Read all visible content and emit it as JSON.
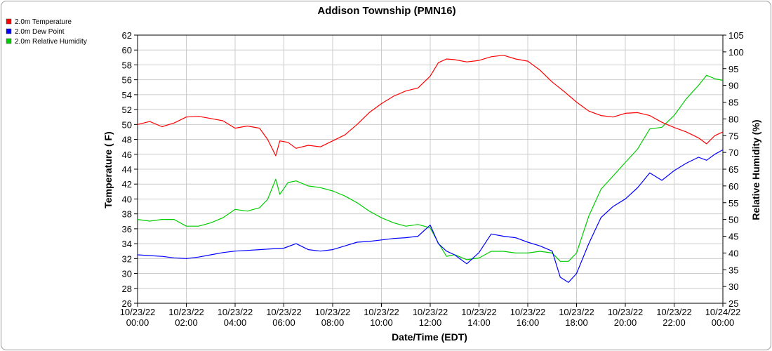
{
  "chart_data": {
    "type": "line",
    "title": "Addison Township (PMN16)",
    "xlabel": "Date/Time (EDT)",
    "ylabel_left": "Temperature ( F)",
    "ylabel_right": "Relative Humidity (%)",
    "ylim_left": [
      26,
      62
    ],
    "ylim_right": [
      25,
      105
    ],
    "xlim": [
      "10/23/22 00:00",
      "10/24/22 00:00"
    ],
    "grid": true,
    "legend_position": "top-left",
    "x_ticks": [
      {
        "date": "10/23/22",
        "time": "00:00"
      },
      {
        "date": "10/23/22",
        "time": "02:00"
      },
      {
        "date": "10/23/22",
        "time": "04:00"
      },
      {
        "date": "10/23/22",
        "time": "06:00"
      },
      {
        "date": "10/23/22",
        "time": "08:00"
      },
      {
        "date": "10/23/22",
        "time": "10:00"
      },
      {
        "date": "10/23/22",
        "time": "12:00"
      },
      {
        "date": "10/23/22",
        "time": "14:00"
      },
      {
        "date": "10/23/22",
        "time": "16:00"
      },
      {
        "date": "10/23/22",
        "time": "18:00"
      },
      {
        "date": "10/23/22",
        "time": "20:00"
      },
      {
        "date": "10/23/22",
        "time": "22:00"
      },
      {
        "date": "10/24/22",
        "time": "00:00"
      }
    ],
    "y_ticks_left": [
      26,
      28,
      30,
      32,
      34,
      36,
      38,
      40,
      42,
      44,
      46,
      48,
      50,
      52,
      54,
      56,
      58,
      60,
      62
    ],
    "y_ticks_right": [
      25,
      30,
      35,
      40,
      45,
      50,
      55,
      60,
      65,
      70,
      75,
      80,
      85,
      90,
      95,
      100,
      105
    ],
    "series": [
      {
        "name": "2.0m Temperature",
        "color": "#ff0000",
        "axis": "left",
        "points": [
          [
            "10/23/22 00:00",
            50.0
          ],
          [
            "10/23/22 00:30",
            50.4
          ],
          [
            "10/23/22 01:00",
            49.7
          ],
          [
            "10/23/22 01:30",
            50.2
          ],
          [
            "10/23/22 02:00",
            51.0
          ],
          [
            "10/23/22 02:30",
            51.1
          ],
          [
            "10/23/22 03:00",
            50.8
          ],
          [
            "10/23/22 03:30",
            50.5
          ],
          [
            "10/23/22 04:00",
            49.5
          ],
          [
            "10/23/22 04:30",
            49.8
          ],
          [
            "10/23/22 05:00",
            49.5
          ],
          [
            "10/23/22 05:20",
            48.0
          ],
          [
            "10/23/22 05:40",
            45.8
          ],
          [
            "10/23/22 05:50",
            47.8
          ],
          [
            "10/23/22 06:10",
            47.6
          ],
          [
            "10/23/22 06:30",
            46.8
          ],
          [
            "10/23/22 07:00",
            47.2
          ],
          [
            "10/23/22 07:30",
            47.0
          ],
          [
            "10/23/22 08:00",
            47.8
          ],
          [
            "10/23/22 08:30",
            48.6
          ],
          [
            "10/23/22 09:00",
            50.0
          ],
          [
            "10/23/22 09:30",
            51.6
          ],
          [
            "10/23/22 10:00",
            52.8
          ],
          [
            "10/23/22 10:30",
            53.8
          ],
          [
            "10/23/22 11:00",
            54.5
          ],
          [
            "10/23/22 11:30",
            54.9
          ],
          [
            "10/23/22 12:00",
            56.5
          ],
          [
            "10/23/22 12:20",
            58.3
          ],
          [
            "10/23/22 12:40",
            58.8
          ],
          [
            "10/23/22 13:00",
            58.7
          ],
          [
            "10/23/22 13:30",
            58.4
          ],
          [
            "10/23/22 14:00",
            58.6
          ],
          [
            "10/23/22 14:30",
            59.1
          ],
          [
            "10/23/22 15:00",
            59.3
          ],
          [
            "10/23/22 15:30",
            58.8
          ],
          [
            "10/23/22 16:00",
            58.5
          ],
          [
            "10/23/22 16:30",
            57.3
          ],
          [
            "10/23/22 17:00",
            55.7
          ],
          [
            "10/23/22 17:30",
            54.4
          ],
          [
            "10/23/22 18:00",
            53.0
          ],
          [
            "10/23/22 18:30",
            51.8
          ],
          [
            "10/23/22 19:00",
            51.2
          ],
          [
            "10/23/22 19:30",
            51.0
          ],
          [
            "10/23/22 20:00",
            51.5
          ],
          [
            "10/23/22 20:30",
            51.6
          ],
          [
            "10/23/22 21:00",
            51.2
          ],
          [
            "10/23/22 21:30",
            50.3
          ],
          [
            "10/23/22 22:00",
            49.6
          ],
          [
            "10/23/22 22:30",
            49.0
          ],
          [
            "10/23/22 23:00",
            48.2
          ],
          [
            "10/23/22 23:20",
            47.4
          ],
          [
            "10/23/22 23:40",
            48.5
          ],
          [
            "10/24/22 00:00",
            49.0
          ]
        ]
      },
      {
        "name": "2.0m Dew Point",
        "color": "#0000ff",
        "axis": "left",
        "points": [
          [
            "10/23/22 00:00",
            32.5
          ],
          [
            "10/23/22 00:30",
            32.4
          ],
          [
            "10/23/22 01:00",
            32.3
          ],
          [
            "10/23/22 01:30",
            32.1
          ],
          [
            "10/23/22 02:00",
            32.0
          ],
          [
            "10/23/22 02:30",
            32.2
          ],
          [
            "10/23/22 03:00",
            32.5
          ],
          [
            "10/23/22 03:30",
            32.8
          ],
          [
            "10/23/22 04:00",
            33.0
          ],
          [
            "10/23/22 04:30",
            33.1
          ],
          [
            "10/23/22 05:00",
            33.2
          ],
          [
            "10/23/22 05:30",
            33.3
          ],
          [
            "10/23/22 06:00",
            33.4
          ],
          [
            "10/23/22 06:30",
            34.0
          ],
          [
            "10/23/22 07:00",
            33.2
          ],
          [
            "10/23/22 07:30",
            33.0
          ],
          [
            "10/23/22 08:00",
            33.2
          ],
          [
            "10/23/22 08:30",
            33.7
          ],
          [
            "10/23/22 09:00",
            34.2
          ],
          [
            "10/23/22 09:30",
            34.3
          ],
          [
            "10/23/22 10:00",
            34.5
          ],
          [
            "10/23/22 10:30",
            34.7
          ],
          [
            "10/23/22 11:00",
            34.8
          ],
          [
            "10/23/22 11:30",
            35.0
          ],
          [
            "10/23/22 12:00",
            36.5
          ],
          [
            "10/23/22 12:20",
            34.0
          ],
          [
            "10/23/22 12:40",
            33.0
          ],
          [
            "10/23/22 13:00",
            32.5
          ],
          [
            "10/23/22 13:30",
            31.3
          ],
          [
            "10/23/22 14:00",
            32.8
          ],
          [
            "10/23/22 14:30",
            35.3
          ],
          [
            "10/23/22 15:00",
            35.0
          ],
          [
            "10/23/22 15:30",
            34.8
          ],
          [
            "10/23/22 16:00",
            34.2
          ],
          [
            "10/23/22 16:30",
            33.7
          ],
          [
            "10/23/22 17:00",
            33.0
          ],
          [
            "10/23/22 17:20",
            29.5
          ],
          [
            "10/23/22 17:40",
            28.8
          ],
          [
            "10/23/22 18:00",
            30.0
          ],
          [
            "10/23/22 18:30",
            34.0
          ],
          [
            "10/23/22 19:00",
            37.5
          ],
          [
            "10/23/22 19:30",
            39.0
          ],
          [
            "10/23/22 20:00",
            40.0
          ],
          [
            "10/23/22 20:30",
            41.5
          ],
          [
            "10/23/22 21:00",
            43.5
          ],
          [
            "10/23/22 21:30",
            42.5
          ],
          [
            "10/23/22 22:00",
            43.8
          ],
          [
            "10/23/22 22:30",
            44.8
          ],
          [
            "10/23/22 23:00",
            45.6
          ],
          [
            "10/23/22 23:20",
            45.2
          ],
          [
            "10/23/22 23:40",
            46.0
          ],
          [
            "10/24/22 00:00",
            46.6
          ]
        ]
      },
      {
        "name": "2.0m Relative Humidity",
        "color": "#00cc00",
        "axis": "right",
        "points": [
          [
            "10/23/22 00:00",
            50.0
          ],
          [
            "10/23/22 00:30",
            49.5
          ],
          [
            "10/23/22 01:00",
            50.0
          ],
          [
            "10/23/22 01:30",
            50.0
          ],
          [
            "10/23/22 02:00",
            48.0
          ],
          [
            "10/23/22 02:30",
            48.0
          ],
          [
            "10/23/22 03:00",
            49.0
          ],
          [
            "10/23/22 03:30",
            50.5
          ],
          [
            "10/23/22 04:00",
            53.0
          ],
          [
            "10/23/22 04:30",
            52.5
          ],
          [
            "10/23/22 05:00",
            53.5
          ],
          [
            "10/23/22 05:20",
            56.0
          ],
          [
            "10/23/22 05:40",
            62.0
          ],
          [
            "10/23/22 05:50",
            57.5
          ],
          [
            "10/23/22 06:10",
            61.0
          ],
          [
            "10/23/22 06:30",
            61.5
          ],
          [
            "10/23/22 07:00",
            60.0
          ],
          [
            "10/23/22 07:30",
            59.5
          ],
          [
            "10/23/22 08:00",
            58.5
          ],
          [
            "10/23/22 08:30",
            57.0
          ],
          [
            "10/23/22 09:00",
            55.0
          ],
          [
            "10/23/22 09:30",
            52.5
          ],
          [
            "10/23/22 10:00",
            50.5
          ],
          [
            "10/23/22 10:30",
            49.0
          ],
          [
            "10/23/22 11:00",
            48.0
          ],
          [
            "10/23/22 11:30",
            48.5
          ],
          [
            "10/23/22 12:00",
            47.5
          ],
          [
            "10/23/22 12:20",
            43.0
          ],
          [
            "10/23/22 12:40",
            39.0
          ],
          [
            "10/23/22 13:00",
            39.5
          ],
          [
            "10/23/22 13:30",
            38.0
          ],
          [
            "10/23/22 14:00",
            38.5
          ],
          [
            "10/23/22 14:30",
            40.5
          ],
          [
            "10/23/22 15:00",
            40.5
          ],
          [
            "10/23/22 15:30",
            40.0
          ],
          [
            "10/23/22 16:00",
            40.0
          ],
          [
            "10/23/22 16:30",
            40.5
          ],
          [
            "10/23/22 17:00",
            40.0
          ],
          [
            "10/23/22 17:20",
            37.5
          ],
          [
            "10/23/22 17:40",
            37.5
          ],
          [
            "10/23/22 18:00",
            40.0
          ],
          [
            "10/23/22 18:30",
            51.0
          ],
          [
            "10/23/22 19:00",
            59.0
          ],
          [
            "10/23/22 19:30",
            63.0
          ],
          [
            "10/23/22 20:00",
            67.0
          ],
          [
            "10/23/22 20:30",
            71.0
          ],
          [
            "10/23/22 21:00",
            77.0
          ],
          [
            "10/23/22 21:30",
            77.5
          ],
          [
            "10/23/22 22:00",
            81.0
          ],
          [
            "10/23/22 22:30",
            86.0
          ],
          [
            "10/23/22 23:00",
            90.0
          ],
          [
            "10/23/22 23:20",
            93.0
          ],
          [
            "10/23/22 23:40",
            92.0
          ],
          [
            "10/24/22 00:00",
            91.5
          ]
        ]
      }
    ]
  }
}
